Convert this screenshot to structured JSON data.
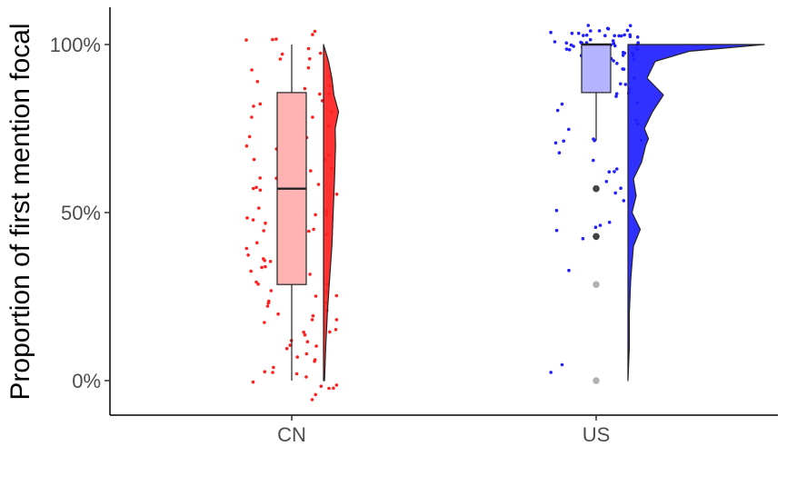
{
  "chart_data": {
    "type": "raincloud",
    "ylabel": "Proportion of first mention focal",
    "xlabel": "",
    "categories": [
      "CN",
      "US"
    ],
    "y_ticks": [
      "0%",
      "50%",
      "100%"
    ],
    "y_tick_values": [
      0,
      0.5,
      1.0
    ],
    "ylim": [
      -0.1,
      1.1
    ],
    "grid": false,
    "colors": {
      "CN": "#ff2020",
      "US": "#1f1fff",
      "CN_box_fill": "#ffb3b3",
      "US_box_fill": "#b3b3ff"
    },
    "groups": [
      {
        "name": "CN",
        "box": {
          "q1": 0.286,
          "median": 0.571,
          "q3": 0.857,
          "whisker_low": 0.0,
          "whisker_high": 1.0
        },
        "outliers": [],
        "density": [
          [
            0.0,
            0.05
          ],
          [
            0.1,
            0.11
          ],
          [
            0.2,
            0.19
          ],
          [
            0.3,
            0.3
          ],
          [
            0.4,
            0.42
          ],
          [
            0.5,
            0.48
          ],
          [
            0.6,
            0.55
          ],
          [
            0.7,
            0.6
          ],
          [
            0.75,
            0.58
          ],
          [
            0.8,
            0.75
          ],
          [
            0.85,
            0.52
          ],
          [
            0.9,
            0.42
          ],
          [
            0.95,
            0.25
          ],
          [
            1.0,
            0.0
          ]
        ],
        "points": [
          1.02,
          1.01,
          1.03,
          1.02,
          1.04,
          0.99,
          0.97,
          0.96,
          0.95,
          0.93,
          0.91,
          0.89,
          0.88,
          0.87,
          0.86,
          0.84,
          0.83,
          0.82,
          0.81,
          0.8,
          0.79,
          0.78,
          0.77,
          0.76,
          0.75,
          0.74,
          0.73,
          0.72,
          0.71,
          0.7,
          0.69,
          0.68,
          0.67,
          0.66,
          0.65,
          0.64,
          0.63,
          0.62,
          0.61,
          0.6,
          0.59,
          0.58,
          0.57,
          0.56,
          0.55,
          0.54,
          0.53,
          0.52,
          0.51,
          0.5,
          0.49,
          0.48,
          0.47,
          0.46,
          0.45,
          0.44,
          0.43,
          0.42,
          0.41,
          0.4,
          0.39,
          0.38,
          0.37,
          0.36,
          0.35,
          0.34,
          0.33,
          0.32,
          0.31,
          0.3,
          0.29,
          0.28,
          0.27,
          0.26,
          0.25,
          0.24,
          0.23,
          0.22,
          0.21,
          0.2,
          0.19,
          0.18,
          0.17,
          0.16,
          0.15,
          0.14,
          0.13,
          0.12,
          0.11,
          0.1,
          0.09,
          0.08,
          0.07,
          0.06,
          0.05,
          0.04,
          0.03,
          0.02,
          0.01,
          0.0,
          -0.01,
          -0.02,
          -0.03,
          -0.04,
          -0.05,
          0.72,
          0.81,
          0.65,
          0.58,
          0.44,
          0.36,
          0.23,
          0.18,
          0.12,
          0.97,
          0.92,
          0.86,
          0.61,
          0.55,
          0.47,
          0.33,
          0.27,
          0.02,
          -0.02,
          0.78,
          0.69
        ]
      },
      {
        "name": "US",
        "box": {
          "q1": 0.857,
          "median": 1.0,
          "q3": 1.0,
          "whisker_low": 0.714,
          "whisker_high": 1.0
        },
        "outliers": [
          0.571,
          0.429,
          0.286,
          0.0
        ],
        "density": [
          [
            0.0,
            0.0
          ],
          [
            0.1,
            0.01
          ],
          [
            0.2,
            0.01
          ],
          [
            0.3,
            0.02
          ],
          [
            0.4,
            0.04
          ],
          [
            0.45,
            0.09
          ],
          [
            0.5,
            0.03
          ],
          [
            0.55,
            0.06
          ],
          [
            0.6,
            0.04
          ],
          [
            0.65,
            0.1
          ],
          [
            0.7,
            0.13
          ],
          [
            0.72,
            0.15
          ],
          [
            0.75,
            0.12
          ],
          [
            0.8,
            0.18
          ],
          [
            0.85,
            0.26
          ],
          [
            0.9,
            0.14
          ],
          [
            0.95,
            0.2
          ],
          [
            0.98,
            0.45
          ],
          [
            1.0,
            1.0
          ]
        ],
        "points": [
          1.05,
          1.04,
          1.03,
          1.02,
          1.01,
          1.0,
          0.99,
          0.98,
          0.97,
          0.96,
          0.95,
          1.05,
          1.04,
          1.03,
          1.02,
          1.01,
          1.0,
          0.99,
          0.98,
          0.97,
          0.96,
          1.05,
          1.04,
          1.03,
          1.02,
          1.01,
          1.0,
          0.99,
          0.98,
          0.97,
          1.05,
          1.04,
          1.03,
          1.02,
          1.01,
          1.0,
          0.99,
          0.98,
          1.04,
          1.03,
          1.02,
          1.01,
          1.0,
          0.99,
          1.03,
          1.02,
          1.01,
          1.0,
          0.99,
          0.98,
          0.97,
          0.96,
          0.95,
          0.93,
          0.92,
          0.9,
          0.88,
          0.87,
          0.86,
          0.85,
          0.84,
          0.83,
          0.82,
          0.8,
          0.78,
          0.76,
          0.74,
          0.72,
          0.71,
          0.71,
          0.7,
          0.68,
          0.66,
          0.63,
          0.62,
          0.6,
          0.58,
          0.56,
          0.53,
          0.51,
          0.47,
          0.46,
          0.45,
          0.44,
          0.42,
          0.33,
          0.04,
          0.03,
          0.86,
          0.88,
          0.92,
          0.96,
          0.71,
          0.62
        ]
      }
    ]
  }
}
